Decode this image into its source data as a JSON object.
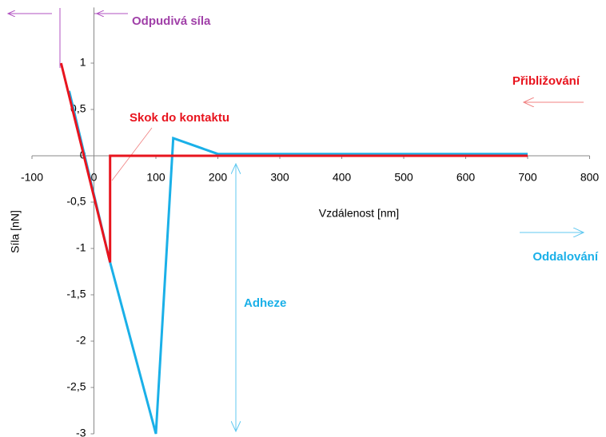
{
  "chart_data": {
    "type": "line",
    "xlabel": "Vzdálenost [nm]",
    "ylabel": "Síla [nN]",
    "xlim": [
      -100,
      800
    ],
    "xticks": [
      -100,
      0,
      100,
      200,
      300,
      400,
      500,
      600,
      700,
      800
    ],
    "ylim": [
      -3,
      1.6
    ],
    "yticks": [
      1,
      {
        "value": 0.5,
        "label": "0,5"
      },
      0,
      {
        "value": -0.5,
        "label": "-0,5"
      },
      -1,
      {
        "value": -1.5,
        "label": "-1,5"
      },
      -2,
      {
        "value": -2.5,
        "label": "-2,5"
      },
      -3
    ],
    "grid": false,
    "series": [
      {
        "name": "Oddalování",
        "color": "#1ab0e8",
        "x": [
          -40,
          26,
          100,
          128,
          200,
          700
        ],
        "values": [
          0.7,
          -1.15,
          -3,
          0.19,
          0.02,
          0.02
        ]
      },
      {
        "name": "Přibližování",
        "color": "#e8141e",
        "x": [
          -53,
          26,
          26,
          700
        ],
        "values": [
          1,
          -1.15,
          0,
          0
        ]
      }
    ],
    "annotations": [
      "Odpudivá síla",
      "Skok do kontaktu",
      "Adheze"
    ]
  }
}
